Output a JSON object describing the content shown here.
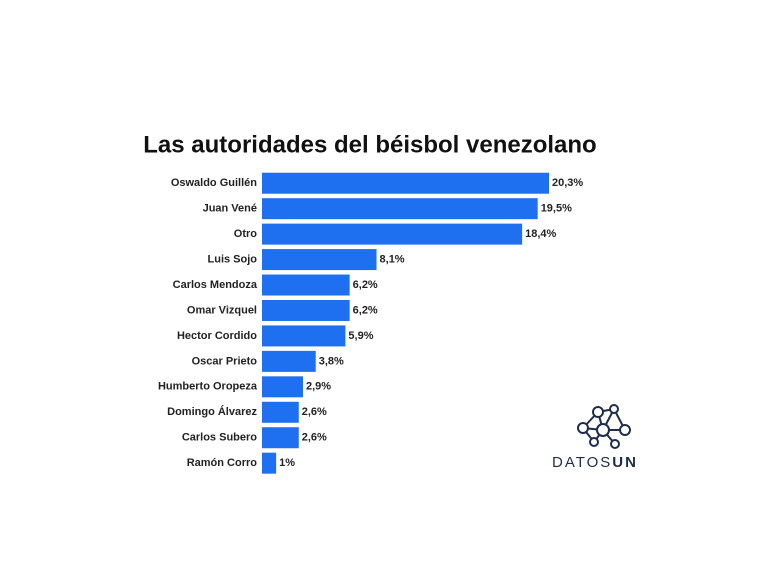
{
  "chart_data": {
    "type": "hbar",
    "title": "Las autoridades del béisbol venezolano",
    "categories": [
      "Oswaldo Guillén",
      "Juan Vené",
      "Otro",
      "Luis Sojo",
      "Carlos Mendoza",
      "Omar Vizquel",
      "Hector Cordido",
      "Oscar Prieto",
      "Humberto Oropeza",
      "Domingo Álvarez",
      "Carlos Subero",
      "Ramón Corro"
    ],
    "values": [
      20.3,
      19.5,
      18.4,
      8.1,
      6.2,
      6.2,
      5.9,
      3.8,
      2.9,
      2.6,
      2.6,
      1
    ],
    "value_labels": [
      "20,3%",
      "19,5%",
      "18,4%",
      "8,1%",
      "6,2%",
      "6,2%",
      "5,9%",
      "3,8%",
      "2,9%",
      "2,6%",
      "2,6%",
      "1%"
    ],
    "color": "#1f70f0"
  },
  "logo": {
    "text_light": "DATOS",
    "text_bold": "UN"
  }
}
